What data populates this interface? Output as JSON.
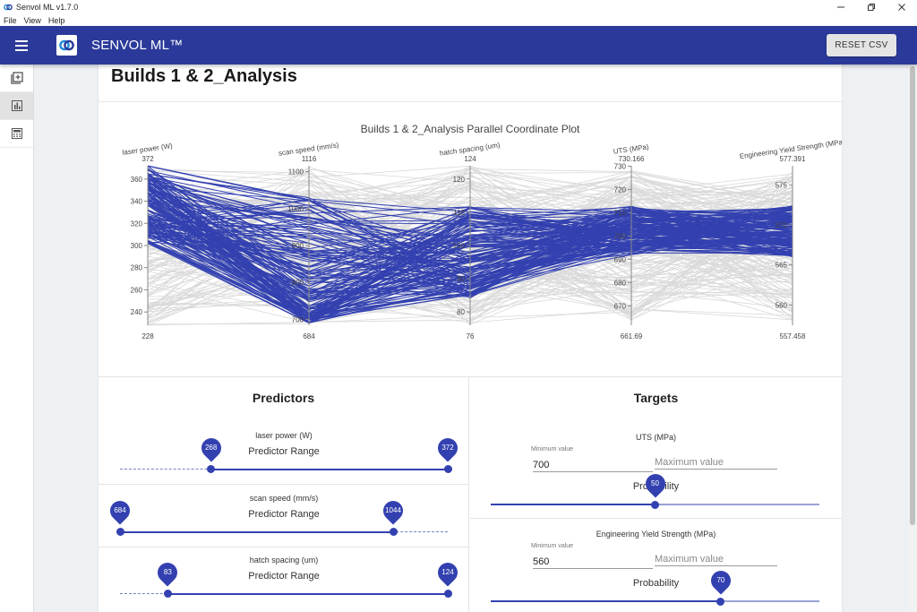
{
  "window": {
    "title": "Senvol ML v1.7.0",
    "menu": [
      "File",
      "View",
      "Help"
    ],
    "controls": [
      "minimize-icon",
      "restore-icon",
      "close-icon"
    ]
  },
  "appbar": {
    "brand": "SENVOL ML™",
    "reset_label": "RESET CSV",
    "color": "#2b3a9a"
  },
  "sidebar": {
    "items": [
      {
        "icon": "add-dataset-icon"
      },
      {
        "icon": "bar-chart-icon"
      },
      {
        "icon": "calculator-icon"
      }
    ]
  },
  "page": {
    "title": "Builds 1 & 2_Analysis"
  },
  "chart_data": {
    "type": "parallel-coordinates",
    "title": "Builds 1 & 2_Analysis Parallel Coordinate Plot",
    "line_color_selected": "#3341b0",
    "line_color_other": "#d9d9d9",
    "axes": [
      {
        "label": "laser power (W)",
        "min": 228,
        "max": 372,
        "ticks": [
          240,
          260,
          280,
          300,
          320,
          340,
          360
        ],
        "selected_range": [
          268,
          372
        ]
      },
      {
        "label": "scan speed (mm/s)",
        "min": 684,
        "max": 1116,
        "ticks": [
          700,
          800,
          900,
          1000,
          1100
        ],
        "selected_range": [
          684,
          1044
        ]
      },
      {
        "label": "hatch spacing (um)",
        "min": 76,
        "max": 124,
        "ticks": [
          80,
          90,
          100,
          110,
          120
        ],
        "selected_range": [
          83,
          124
        ]
      },
      {
        "label": "UTS (MPa)",
        "min": 661.69,
        "max": 730.166,
        "ticks": [
          670,
          680,
          690,
          700,
          710,
          720,
          730
        ]
      },
      {
        "label": "Engineering Yield Strength (MPa)",
        "min": 557.458,
        "max": 577.391,
        "ticks": [
          560,
          565,
          570,
          575
        ]
      }
    ],
    "axis_min_labels": [
      "228",
      "684",
      "76",
      "661.69",
      "557.458"
    ],
    "axis_max_labels": [
      "372",
      "1116",
      "124",
      "730.166",
      "577.391"
    ]
  },
  "predictors": {
    "title": "Predictors",
    "items": [
      {
        "name": "laser power (W)",
        "range_label": "Predictor Range",
        "min": 228,
        "max": 372,
        "low": 268,
        "high": 372,
        "low_label": "268",
        "high_label": "372"
      },
      {
        "name": "scan speed (mm/s)",
        "range_label": "Predictor Range",
        "min": 684,
        "max": 1116,
        "low": 684,
        "high": 1044,
        "low_label": "684",
        "high_label": "1044"
      },
      {
        "name": "hatch spacing (um)",
        "range_label": "Predictor Range",
        "min": 76,
        "max": 124,
        "low": 83,
        "high": 124,
        "low_label": "83",
        "high_label": "124"
      }
    ]
  },
  "targets": {
    "title": "Targets",
    "items": [
      {
        "name": "UTS (MPa)",
        "min_label": "Minimum value",
        "min_value": "700",
        "max_placeholder": "Maximum value",
        "prob_label": "Probability",
        "probability": 50,
        "prob_text": "50"
      },
      {
        "name": "Engineering Yield Strength (MPa)",
        "min_label": "Minimum value",
        "min_value": "560",
        "max_placeholder": "Maximum value",
        "prob_label": "Probability",
        "probability": 70,
        "prob_text": "70"
      }
    ]
  }
}
